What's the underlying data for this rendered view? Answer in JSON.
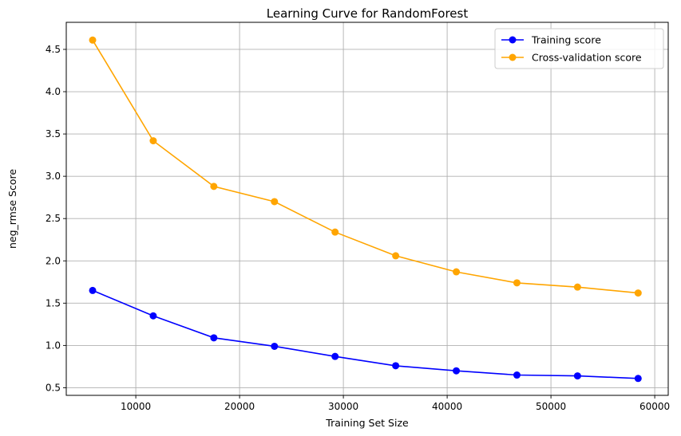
{
  "chart_data": {
    "type": "line",
    "title": "Learning Curve for RandomForest",
    "xlabel": "Training Set Size",
    "ylabel": "neg_rmse Score",
    "xlim": [
      3300,
      61300
    ],
    "ylim": [
      0.41,
      4.82
    ],
    "xticks": [
      10000,
      20000,
      30000,
      40000,
      50000,
      60000
    ],
    "yticks": [
      0.5,
      1.0,
      1.5,
      2.0,
      2.5,
      3.0,
      3.5,
      4.0,
      4.5
    ],
    "xtick_labels": [
      "10000",
      "20000",
      "30000",
      "40000",
      "50000",
      "60000"
    ],
    "ytick_labels": [
      "0.5",
      "1.0",
      "1.5",
      "2.0",
      "2.5",
      "3.0",
      "3.5",
      "4.0",
      "4.5"
    ],
    "grid": true,
    "legend_position": "top-right",
    "x": [
      5840,
      11680,
      17520,
      23360,
      29200,
      35040,
      40880,
      46720,
      52560,
      58400
    ],
    "series": [
      {
        "name": "Training score",
        "color": "#0000ff",
        "values": [
          1.65,
          1.35,
          1.09,
          0.99,
          0.87,
          0.76,
          0.7,
          0.65,
          0.64,
          0.61
        ]
      },
      {
        "name": "Cross-validation score",
        "color": "#ffa500",
        "values": [
          4.61,
          3.42,
          2.88,
          2.7,
          2.34,
          2.06,
          1.87,
          1.74,
          1.69,
          1.62
        ]
      }
    ]
  }
}
